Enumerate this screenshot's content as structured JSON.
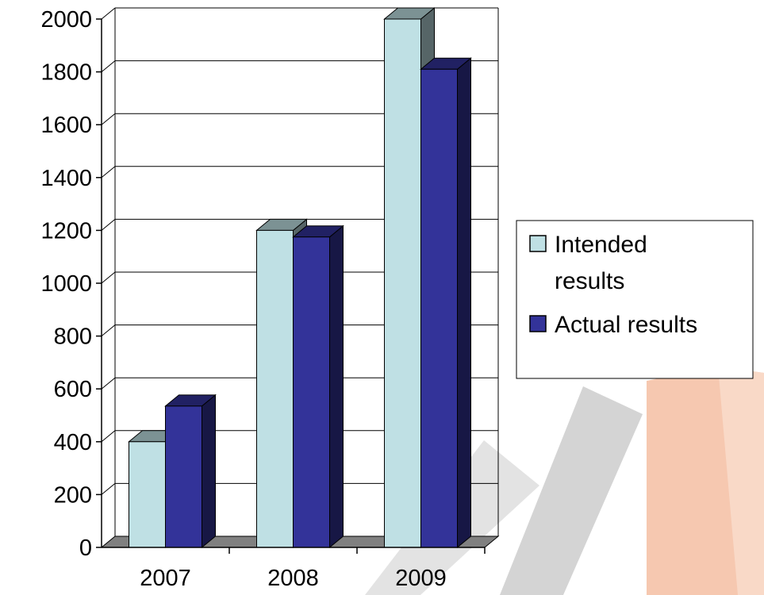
{
  "chart_data": {
    "type": "bar",
    "title": "",
    "xlabel": "",
    "ylabel": "",
    "categories": [
      "2007",
      "2008",
      "2009"
    ],
    "series": [
      {
        "name": "Intended results",
        "values": [
          400,
          1200,
          2000
        ],
        "color": "#bfe0e4"
      },
      {
        "name": "Actual results",
        "values": [
          535,
          1175,
          1810
        ],
        "color": "#333399"
      }
    ],
    "ylim": [
      0,
      2000
    ],
    "yticks": [
      0,
      200,
      400,
      600,
      800,
      1000,
      1200,
      1400,
      1600,
      1800,
      2000
    ],
    "grid": true,
    "legend_position": "right",
    "three_d": true
  },
  "legend": {
    "intended_line1": "Intended",
    "intended_line2": "results",
    "actual": "Actual results"
  },
  "colors": {
    "background": "#ffffff",
    "intended": "#bfe0e4",
    "actual": "#333399",
    "floor": "#808080",
    "decor_gray": "#d9d9d9",
    "decor_orange": "#f4c0a8"
  }
}
